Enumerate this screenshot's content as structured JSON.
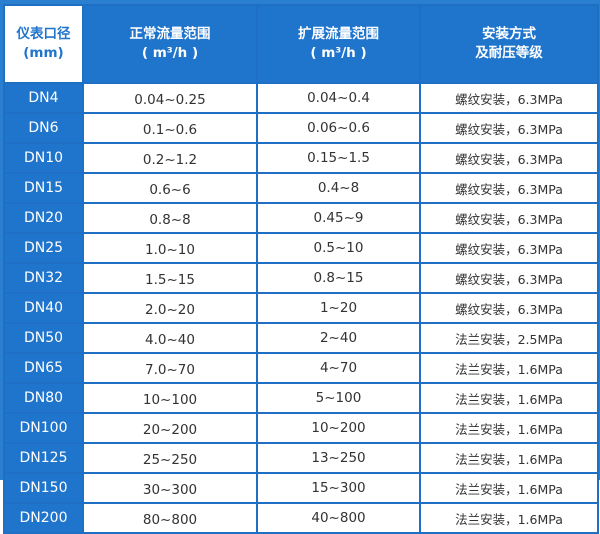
{
  "header": {
    "col1": [
      "仪表口径",
      "(mm)"
    ],
    "col2": [
      "正常流量范围",
      "( m³/h )"
    ],
    "col3": [
      "扩展流量范围",
      "( m³/h )"
    ],
    "col4": [
      "安装方式",
      "及耐压等级"
    ]
  },
  "rows": [
    {
      "dn": "DN4",
      "normal": "0.04~0.25",
      "extended": "0.04~0.4",
      "install": "螺纹安装，6.3MPa"
    },
    {
      "dn": "DN6",
      "normal": "0.1~0.6",
      "extended": "0.06~0.6",
      "install": "螺纹安装，6.3MPa"
    },
    {
      "dn": "DN10",
      "normal": "0.2~1.2",
      "extended": "0.15~1.5",
      "install": "螺纹安装，6.3MPa"
    },
    {
      "dn": "DN15",
      "normal": "0.6~6",
      "extended": "0.4~8",
      "install": "螺纹安装，6.3MPa"
    },
    {
      "dn": "DN20",
      "normal": "0.8~8",
      "extended": "0.45~9",
      "install": "螺纹安装，6.3MPa"
    },
    {
      "dn": "DN25",
      "normal": "1.0~10",
      "extended": "0.5~10",
      "install": "螺纹安装，6.3MPa"
    },
    {
      "dn": "DN32",
      "normal": "1.5~15",
      "extended": "0.8~15",
      "install": "螺纹安装，6.3MPa"
    },
    {
      "dn": "DN40",
      "normal": "2.0~20",
      "extended": "1~20",
      "install": "螺纹安装，6.3MPa"
    },
    {
      "dn": "DN50",
      "normal": "4.0~40",
      "extended": "2~40",
      "install": "法兰安装，2.5MPa"
    },
    {
      "dn": "DN65",
      "normal": "7.0~70",
      "extended": "4~70",
      "install": "法兰安装，1.6MPa"
    },
    {
      "dn": "DN80",
      "normal": "10~100",
      "extended": "5~100",
      "install": "法兰安装，1.6MPa"
    },
    {
      "dn": "DN100",
      "normal": "20~200",
      "extended": "10~200",
      "install": "法兰安装，1.6MPa"
    },
    {
      "dn": "DN125",
      "normal": "25~250",
      "extended": "13~250",
      "install": "法兰安装，1.6MPa"
    },
    {
      "dn": "DN150",
      "normal": "30~300",
      "extended": "15~300",
      "install": "法兰安装，1.6MPa"
    },
    {
      "dn": "DN200",
      "normal": "80~800",
      "extended": "40~800",
      "install": "法兰安装，1.6MPa"
    }
  ],
  "colors": {
    "header_blue": "#1f74cc",
    "border_blue": "#1f6fc4",
    "text": "#333333"
  }
}
